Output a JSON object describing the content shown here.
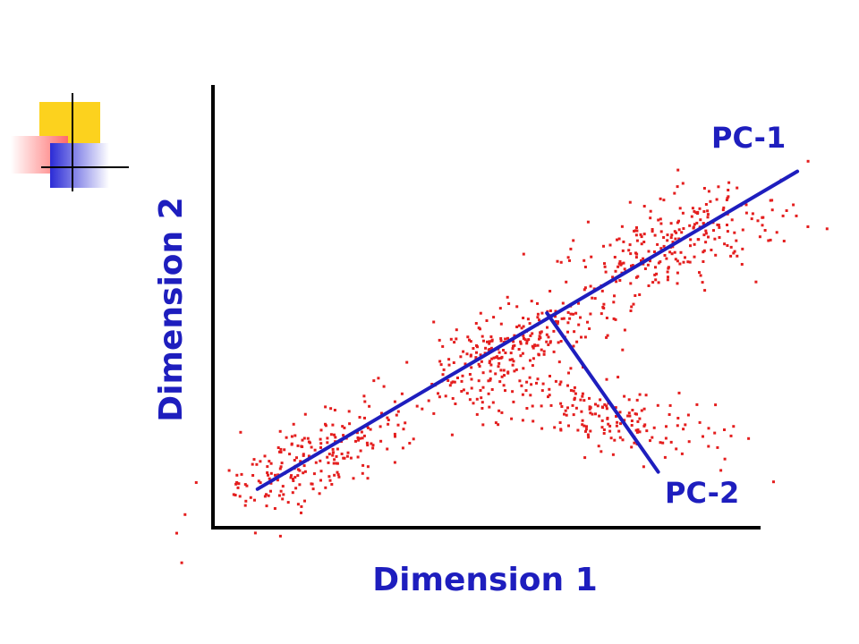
{
  "chart_data": {
    "type": "scatter",
    "title": "",
    "xlabel": "Dimension 1",
    "ylabel": "Dimension 2",
    "xlim": [
      0,
      10
    ],
    "ylim": [
      0,
      10
    ],
    "grid": false,
    "legend": "none",
    "colors": {
      "points": "#e41e1e",
      "axes_lines": "#1e1ebe",
      "axis": "#000000",
      "label_text": "#1e1ebe"
    },
    "clusters": [
      {
        "name": "lower-left",
        "center": [
          1.8,
          1.6
        ],
        "spread": [
          0.9,
          0.7
        ],
        "count": 220
      },
      {
        "name": "middle",
        "center": [
          5.2,
          4.2
        ],
        "spread": [
          1.0,
          0.7
        ],
        "count": 260
      },
      {
        "name": "upper-right",
        "center": [
          8.2,
          6.6
        ],
        "spread": [
          1.1,
          0.9
        ],
        "count": 260
      },
      {
        "name": "lower-branch",
        "center": [
          7.0,
          2.6
        ],
        "spread": [
          1.2,
          0.6
        ],
        "count": 180
      }
    ],
    "lines": [
      {
        "name": "PC-1",
        "label": "PC-1",
        "from": [
          0.8,
          0.9
        ],
        "to": [
          10.5,
          8.3
        ]
      },
      {
        "name": "PC-2",
        "label": "PC-2",
        "from": [
          6.0,
          5.0
        ],
        "to": [
          8.0,
          1.3
        ]
      }
    ]
  }
}
